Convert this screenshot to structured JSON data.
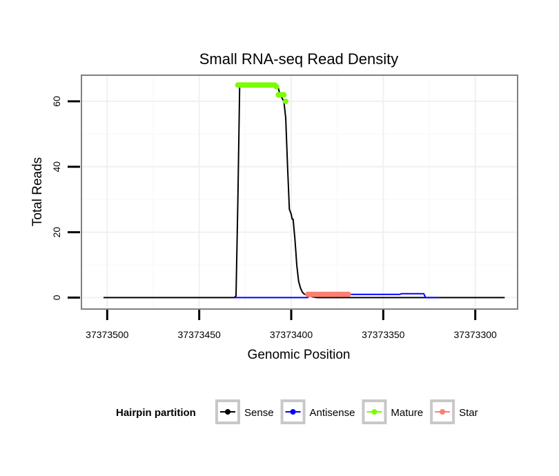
{
  "chart_data": {
    "type": "line",
    "title": "Small RNA-seq Read Density",
    "xlabel": "Genomic Position",
    "ylabel": "Total Reads",
    "xlim": [
      37373514,
      37373277
    ],
    "ylim": [
      -3.5,
      68
    ],
    "x_reversed": true,
    "grid": true,
    "x_ticks": [
      37373500,
      37373450,
      37373400,
      37373350,
      37373300
    ],
    "x_tick_labels": [
      "37373500",
      "37373450",
      "37373400",
      "37373350",
      "37373300"
    ],
    "y_ticks": [
      0,
      20,
      40,
      60
    ],
    "y_tick_labels": [
      "0",
      "20",
      "40",
      "60"
    ],
    "legend": {
      "title": "Hairpin partition",
      "position": "bottom",
      "entries": [
        {
          "name": "Sense",
          "color": "#000000"
        },
        {
          "name": "Antisense",
          "color": "#0000ff"
        },
        {
          "name": "Mature",
          "color": "#7cfc00"
        },
        {
          "name": "Star",
          "color": "#fa8072"
        }
      ]
    },
    "series": [
      {
        "name": "Sense",
        "color": "#000000",
        "style": "line",
        "x": [
          37373502,
          37373431,
          37373430,
          37373429,
          37373428,
          37373410,
          37373407,
          37373406,
          37373405,
          37373404,
          37373403,
          37373402,
          37373401,
          37373400,
          37373399.5,
          37373399,
          37373398,
          37373397.5,
          37373397,
          37373396,
          37373395,
          37373394,
          37373393,
          37373392,
          37373391,
          37373390,
          37373388,
          37373386,
          37373380,
          37373368,
          37373331,
          37373329,
          37373300,
          37373284
        ],
        "y": [
          0,
          0,
          0.5,
          30,
          65,
          65,
          64,
          62,
          61,
          60,
          55,
          40,
          27,
          25.5,
          24,
          24,
          18,
          14,
          10,
          5,
          3,
          1.7,
          1.1,
          0.9,
          0.7,
          0.5,
          0.2,
          0,
          0,
          0,
          0,
          0,
          0,
          0
        ]
      },
      {
        "name": "Antisense",
        "color": "#0000ff",
        "style": "line",
        "x": [
          37373431,
          37373391,
          37373390,
          37373341,
          37373340,
          37373328,
          37373327,
          37373320
        ],
        "y": [
          0,
          0,
          1,
          1,
          1.2,
          1.2,
          0,
          0
        ]
      },
      {
        "name": "Mature",
        "color": "#7cfc00",
        "style": "points",
        "x": [
          37373429,
          37373428,
          37373427,
          37373426,
          37373425,
          37373424,
          37373423,
          37373422,
          37373421,
          37373420,
          37373419,
          37373418,
          37373417,
          37373416,
          37373415,
          37373414,
          37373413,
          37373412,
          37373411,
          37373410,
          37373409,
          37373408,
          37373407,
          37373406,
          37373405,
          37373404,
          37373403
        ],
        "y": [
          65,
          65,
          65,
          65,
          65,
          65,
          65,
          65,
          65,
          65,
          65,
          65,
          65,
          65,
          65,
          65,
          65,
          65,
          65,
          65,
          65,
          64.5,
          62,
          62,
          62,
          62,
          60
        ]
      },
      {
        "name": "Star",
        "color": "#fa8072",
        "style": "points",
        "x": [
          37373391,
          37373390,
          37373389,
          37373388,
          37373387,
          37373386,
          37373385,
          37373384,
          37373383,
          37373382,
          37373381,
          37373380,
          37373379,
          37373378,
          37373377,
          37373376,
          37373375,
          37373374,
          37373373,
          37373372,
          37373371,
          37373370,
          37373369
        ],
        "y": [
          1,
          1,
          1,
          1,
          1,
          1,
          1,
          1,
          1,
          1,
          1,
          1,
          1,
          1,
          1,
          1,
          1,
          1,
          1,
          1,
          1,
          1,
          1
        ]
      }
    ]
  }
}
